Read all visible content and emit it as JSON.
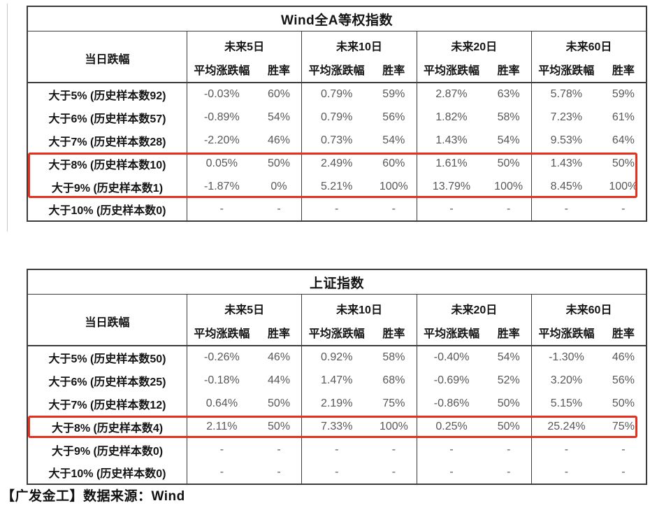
{
  "colors": {
    "highlight_red": "#e5301d",
    "table_border": "#3c3c3c",
    "value_text": "#585858",
    "label_text": "#141414"
  },
  "footer": {
    "text": "【广发金工】数据来源：Wind"
  },
  "tables": [
    {
      "title": "Wind全A等权指数",
      "col_day_drop": "当日跌幅",
      "periods": [
        "未来5日",
        "未来10日",
        "未来20日",
        "未来60日"
      ],
      "sub_avg": "平均涨跌幅",
      "sub_win": "胜率",
      "rows": [
        {
          "label": "大于5% (历史样本数92)",
          "values": [
            "-0.03%",
            "60%",
            "0.79%",
            "59%",
            "2.87%",
            "63%",
            "5.78%",
            "59%"
          ]
        },
        {
          "label": "大于6% (历史样本数57)",
          "values": [
            "-0.89%",
            "54%",
            "0.79%",
            "56%",
            "1.82%",
            "58%",
            "7.23%",
            "61%"
          ]
        },
        {
          "label": "大于7% (历史样本数28)",
          "values": [
            "-2.20%",
            "46%",
            "0.73%",
            "54%",
            "1.43%",
            "54%",
            "9.53%",
            "64%"
          ]
        },
        {
          "label": "大于8% (历史样本数10)",
          "values": [
            "0.05%",
            "50%",
            "2.49%",
            "60%",
            "1.61%",
            "50%",
            "1.43%",
            "50%"
          ]
        },
        {
          "label": "大于9% (历史样本数1)",
          "values": [
            "-1.87%",
            "0%",
            "5.21%",
            "100%",
            "13.79%",
            "100%",
            "8.45%",
            "100%"
          ]
        },
        {
          "label": "大于10% (历史样本数0)",
          "values": [
            "-",
            "-",
            "-",
            "-",
            "-",
            "-",
            "-",
            "-"
          ]
        }
      ],
      "highlight": {
        "first_row": 3,
        "last_row": 4
      }
    },
    {
      "title": "上证指数",
      "col_day_drop": "当日跌幅",
      "periods": [
        "未来5日",
        "未来10日",
        "未来20日",
        "未来60日"
      ],
      "sub_avg": "平均涨跌幅",
      "sub_win": "胜率",
      "rows": [
        {
          "label": "大于5% (历史样本数50)",
          "values": [
            "-0.26%",
            "46%",
            "0.92%",
            "58%",
            "-0.40%",
            "54%",
            "-1.30%",
            "46%"
          ]
        },
        {
          "label": "大于6% (历史样本数25)",
          "values": [
            "-0.18%",
            "44%",
            "1.47%",
            "68%",
            "-0.69%",
            "52%",
            "3.20%",
            "56%"
          ]
        },
        {
          "label": "大于7% (历史样本数12)",
          "values": [
            "0.64%",
            "50%",
            "2.19%",
            "75%",
            "-0.86%",
            "50%",
            "5.15%",
            "50%"
          ]
        },
        {
          "label": "大于8% (历史样本数4)",
          "values": [
            "2.11%",
            "50%",
            "7.33%",
            "100%",
            "0.25%",
            "50%",
            "25.24%",
            "75%"
          ]
        },
        {
          "label": "大于9% (历史样本数0)",
          "values": [
            "-",
            "-",
            "-",
            "-",
            "-",
            "-",
            "-",
            "-"
          ]
        },
        {
          "label": "大于10% (历史样本数0)",
          "values": [
            "-",
            "-",
            "-",
            "-",
            "-",
            "-",
            "-",
            "-"
          ]
        }
      ],
      "highlight": {
        "first_row": 3,
        "last_row": 3
      }
    }
  ]
}
